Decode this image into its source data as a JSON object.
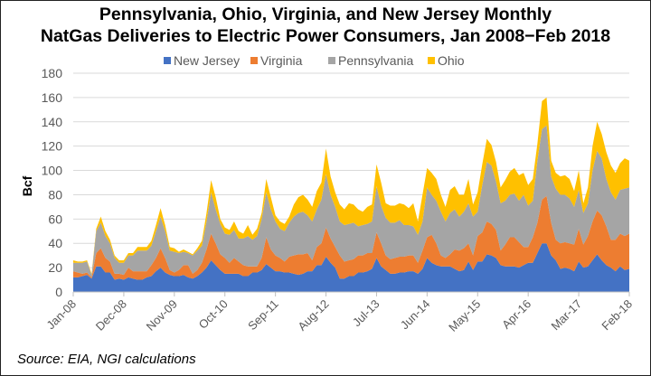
{
  "chart_data": {
    "type": "area",
    "stacked": true,
    "title_lines": [
      "Pennsylvania, Ohio, Virginia, and New Jersey Monthly",
      "NatGas Deliveries to Electric Power Consumers, Jan 2008−Feb 2018"
    ],
    "xlabel": "",
    "ylabel": "Bcf",
    "x_range": [
      "Jan-08",
      "Feb-18"
    ],
    "x_tick_labels": [
      "Jan-08",
      "Dec-08",
      "Nov-09",
      "Oct-10",
      "Sep-11",
      "Aug-12",
      "Jul-13",
      "Jun-14",
      "May-15",
      "Apr-16",
      "Mar-17",
      "Feb-18"
    ],
    "ylim": [
      0,
      180
    ],
    "y_ticks": [
      0,
      20,
      40,
      60,
      80,
      100,
      120,
      140,
      160,
      180
    ],
    "grid": "horizontal",
    "legend_position": "top",
    "series": [
      {
        "name": "New Jersey",
        "color": "#4472C4",
        "values": [
          12,
          12,
          13,
          14,
          11,
          21,
          21,
          16,
          16,
          10,
          11,
          10,
          12,
          11,
          10,
          10,
          12,
          13,
          17,
          20,
          16,
          14,
          13,
          13,
          14,
          12,
          11,
          13,
          16,
          20,
          26,
          22,
          18,
          15,
          15,
          15,
          15,
          13,
          13,
          16,
          16,
          18,
          23,
          20,
          17,
          17,
          16,
          16,
          15,
          14,
          15,
          17,
          17,
          22,
          22,
          29,
          24,
          20,
          11,
          11,
          13,
          13,
          16,
          16,
          17,
          19,
          28,
          21,
          18,
          15,
          15,
          16,
          16,
          17,
          17,
          15,
          19,
          28,
          24,
          22,
          21,
          21,
          21,
          19,
          17,
          18,
          25,
          18,
          25,
          25,
          31,
          30,
          28,
          22,
          21,
          21,
          21,
          20,
          22,
          24,
          24,
          32,
          40,
          40,
          30,
          26,
          19,
          20,
          19,
          17,
          25,
          20,
          21,
          26,
          31,
          26,
          22,
          20,
          17,
          21,
          18,
          19
        ]
      },
      {
        "name": "Virginia",
        "color": "#ED7D31",
        "values": [
          5,
          4,
          2,
          2,
          1,
          11,
          15,
          12,
          9,
          5,
          4,
          4,
          8,
          6,
          7,
          7,
          5,
          9,
          11,
          16,
          12,
          4,
          3,
          5,
          8,
          10,
          4,
          5,
          8,
          15,
          22,
          18,
          13,
          13,
          9,
          13,
          10,
          9,
          8,
          5,
          5,
          10,
          22,
          15,
          13,
          11,
          9,
          13,
          15,
          17,
          16,
          15,
          9,
          15,
          18,
          24,
          20,
          17,
          19,
          14,
          13,
          14,
          14,
          14,
          15,
          13,
          21,
          19,
          12,
          12,
          13,
          13,
          13,
          13,
          13,
          9,
          15,
          17,
          23,
          18,
          9,
          7,
          10,
          16,
          17,
          18,
          15,
          12,
          21,
          24,
          27,
          26,
          23,
          12,
          18,
          24,
          24,
          21,
          15,
          13,
          21,
          25,
          36,
          39,
          27,
          17,
          21,
          21,
          21,
          22,
          27,
          19,
          25,
          32,
          36,
          37,
          32,
          23,
          26,
          27,
          28,
          29
        ]
      },
      {
        "name": "Pennsylvania",
        "color": "#A5A5A5",
        "values": [
          7,
          8,
          9,
          9,
          2,
          18,
          21,
          18,
          15,
          13,
          9,
          10,
          10,
          13,
          17,
          17,
          17,
          16,
          22,
          26,
          22,
          16,
          17,
          14,
          11,
          10,
          15,
          16,
          14,
          23,
          34,
          28,
          25,
          20,
          23,
          23,
          19,
          22,
          25,
          22,
          25,
          32,
          37,
          33,
          28,
          24,
          25,
          28,
          32,
          34,
          35,
          31,
          32,
          31,
          36,
          44,
          36,
          33,
          28,
          30,
          30,
          30,
          24,
          25,
          24,
          26,
          38,
          31,
          31,
          30,
          29,
          30,
          26,
          25,
          24,
          23,
          24,
          41,
          33,
          35,
          36,
          30,
          34,
          33,
          28,
          30,
          33,
          32,
          20,
          39,
          49,
          48,
          40,
          39,
          36,
          35,
          36,
          34,
          43,
          34,
          30,
          51,
          58,
          58,
          38,
          42,
          40,
          39,
          37,
          31,
          32,
          26,
          27,
          42,
          49,
          47,
          39,
          39,
          33,
          36,
          39,
          38
        ]
      },
      {
        "name": "Ohio",
        "color": "#FFC000",
        "values": [
          2,
          1,
          1,
          1,
          1,
          2,
          5,
          4,
          3,
          2,
          2,
          2,
          2,
          2,
          3,
          3,
          3,
          4,
          5,
          7,
          5,
          3,
          3,
          1,
          2,
          1,
          1,
          2,
          4,
          7,
          10,
          10,
          4,
          5,
          4,
          7,
          6,
          4,
          9,
          4,
          6,
          5,
          11,
          10,
          5,
          6,
          6,
          5,
          10,
          13,
          14,
          13,
          12,
          15,
          14,
          21,
          15,
          12,
          14,
          13,
          17,
          15,
          14,
          11,
          14,
          14,
          18,
          19,
          12,
          14,
          14,
          14,
          17,
          14,
          19,
          11,
          22,
          16,
          18,
          18,
          14,
          12,
          19,
          19,
          18,
          14,
          20,
          10,
          16,
          17,
          19,
          17,
          16,
          13,
          17,
          19,
          21,
          21,
          18,
          17,
          18,
          14,
          23,
          23,
          13,
          13,
          15,
          16,
          16,
          13,
          16,
          8,
          13,
          20,
          24,
          20,
          22,
          22,
          22,
          22,
          25,
          22
        ]
      }
    ],
    "source": "Source: EIA, NGI calculations"
  }
}
